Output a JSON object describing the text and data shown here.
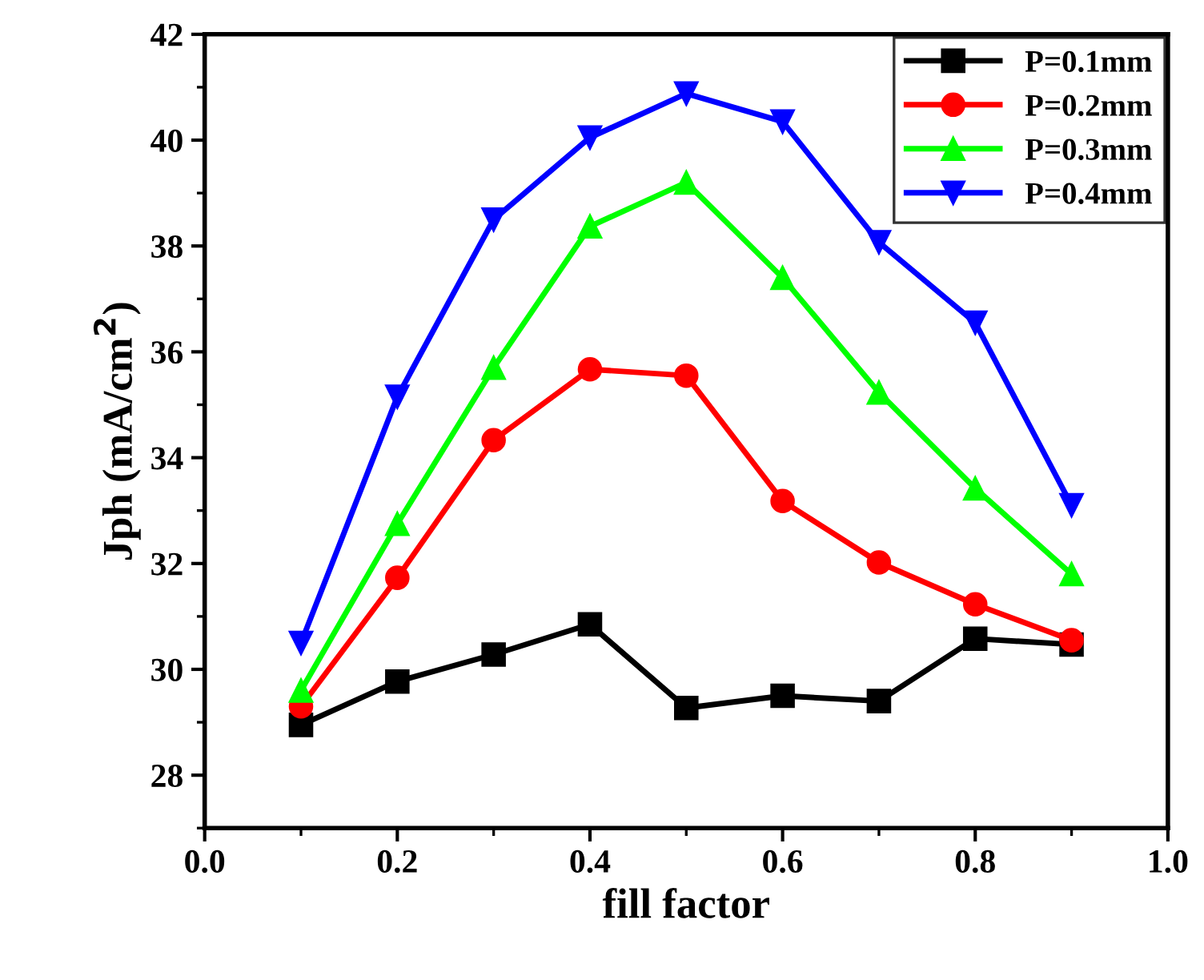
{
  "chart_data": {
    "type": "line",
    "xlabel": "fill factor",
    "ylabel": "Jph (mA/cm$^{2}$)",
    "x": [
      0.1,
      0.2,
      0.3,
      0.4,
      0.5,
      0.6,
      0.7,
      0.8,
      0.9
    ],
    "series": [
      {
        "name": "P=0.1mm",
        "color": "#000000",
        "marker": "square",
        "values": [
          28.95,
          29.77,
          30.28,
          30.85,
          29.27,
          29.5,
          29.4,
          30.58,
          30.47
        ]
      },
      {
        "name": "P=0.2mm",
        "color": "#ff0000",
        "marker": "circle",
        "values": [
          29.3,
          31.73,
          34.33,
          35.67,
          35.55,
          33.18,
          32.02,
          31.23,
          30.55
        ]
      },
      {
        "name": "P=0.3mm",
        "color": "#00ff00",
        "marker": "triangle",
        "values": [
          29.6,
          32.75,
          35.7,
          38.37,
          39.2,
          37.4,
          35.23,
          33.42,
          31.8
        ]
      },
      {
        "name": "P=0.4mm",
        "color": "#0000ff",
        "marker": "triangle_down",
        "values": [
          30.5,
          35.15,
          38.5,
          40.05,
          40.88,
          40.35,
          38.07,
          36.55,
          33.1
        ]
      }
    ],
    "xlim": [
      0.0,
      1.0
    ],
    "xticks": [
      {
        "value": 0.0,
        "label": "0.0"
      },
      0.2,
      0.4,
      0.6,
      0.8,
      {
        "value": 1.0,
        "label": "1.0"
      }
    ],
    "ylim": [
      27,
      42
    ],
    "yticks": [
      28,
      30,
      32,
      34,
      36,
      38,
      40,
      42
    ],
    "legend": "top right",
    "grid": false,
    "line_style": "solid"
  }
}
